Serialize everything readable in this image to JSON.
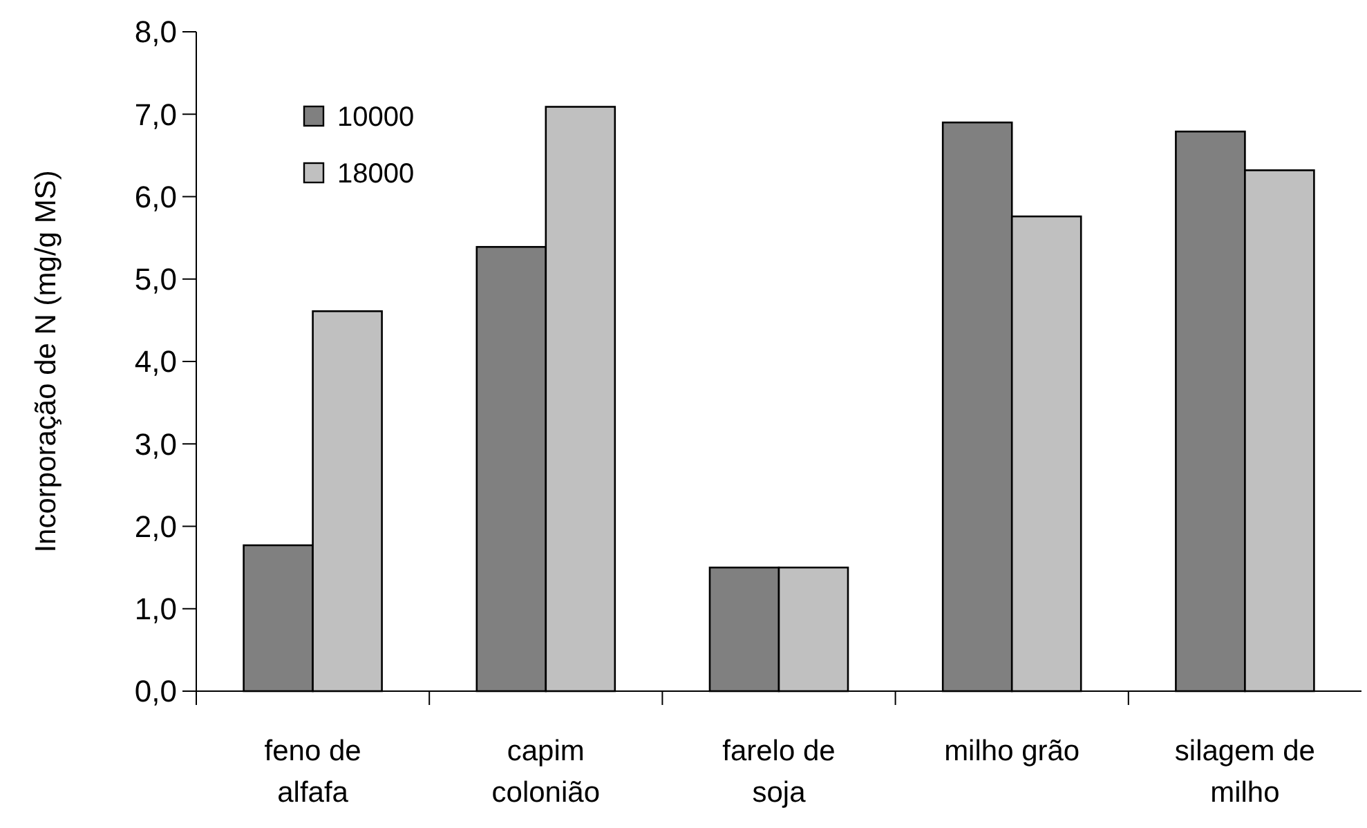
{
  "chart_data": {
    "type": "bar",
    "ylabel": "Incorporação de N (mg/g MS)",
    "categories": [
      "feno de alfafa",
      "capim colonião",
      "farelo de soja",
      "milho grão",
      "silagem de milho"
    ],
    "series": [
      {
        "name": "10000",
        "color": "#808080",
        "values": [
          1.77,
          5.39,
          1.5,
          6.9,
          6.79
        ]
      },
      {
        "name": "18000",
        "color": "#c0c0c0",
        "values": [
          4.61,
          7.09,
          1.5,
          5.76,
          6.32
        ]
      }
    ],
    "ylim": [
      0,
      8
    ],
    "yticks": [
      {
        "value": 0,
        "label": "0,0"
      },
      {
        "value": 1,
        "label": "1,0"
      },
      {
        "value": 2,
        "label": "2,0"
      },
      {
        "value": 3,
        "label": "3,0"
      },
      {
        "value": 4,
        "label": "4,0"
      },
      {
        "value": 5,
        "label": "5,0"
      },
      {
        "value": 6,
        "label": "6,0"
      },
      {
        "value": 7,
        "label": "7,0"
      },
      {
        "value": 8,
        "label": "8,0"
      }
    ],
    "legend": "top left",
    "grid": false
  }
}
